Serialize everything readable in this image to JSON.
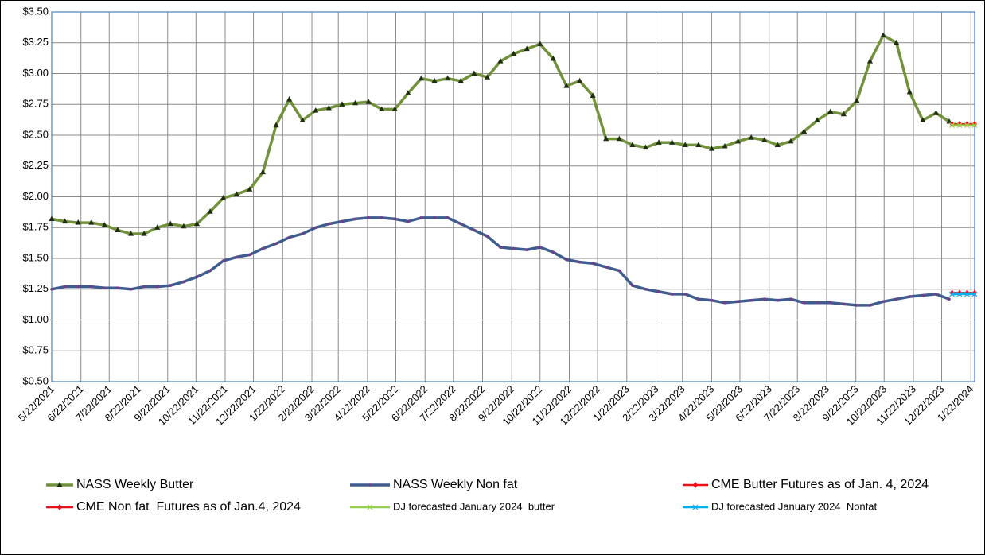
{
  "chart_data": {
    "type": "line",
    "x": [
      "5/22/2021",
      "6/5/2021",
      "6/19/2021",
      "7/3/2021",
      "7/17/2021",
      "7/31/2021",
      "8/14/2021",
      "8/28/2021",
      "9/11/2021",
      "9/25/2021",
      "10/9/2021",
      "10/23/2021",
      "11/6/2021",
      "11/20/2021",
      "12/4/2021",
      "12/18/2021",
      "1/1/2022",
      "1/15/2022",
      "1/29/2022",
      "2/12/2022",
      "2/26/2022",
      "3/12/2022",
      "3/26/2022",
      "4/9/2022",
      "4/23/2022",
      "5/7/2022",
      "5/21/2022",
      "6/4/2022",
      "6/18/2022",
      "7/2/2022",
      "7/16/2022",
      "7/30/2022",
      "8/13/2022",
      "8/27/2022",
      "9/10/2022",
      "9/24/2022",
      "10/8/2022",
      "10/22/2022",
      "11/5/2022",
      "11/19/2022",
      "12/3/2022",
      "12/17/2022",
      "12/31/2022",
      "1/14/2023",
      "1/28/2023",
      "2/11/2023",
      "2/25/2023",
      "3/11/2023",
      "3/25/2023",
      "4/8/2023",
      "4/22/2023",
      "5/6/2023",
      "5/20/2023",
      "6/3/2023",
      "6/17/2023",
      "7/1/2023",
      "7/15/2023",
      "7/29/2023",
      "8/12/2023",
      "8/26/2023",
      "9/9/2023",
      "9/23/2023",
      "10/7/2023",
      "10/21/2023",
      "11/4/2023",
      "11/18/2023",
      "12/2/2023",
      "12/16/2023",
      "12/30/2023"
    ],
    "series": [
      {
        "name": "NASS Weekly Butter",
        "color": "#71913a",
        "marker": "triangle",
        "values": [
          1.82,
          1.8,
          1.79,
          1.79,
          1.77,
          1.73,
          1.7,
          1.7,
          1.75,
          1.78,
          1.76,
          1.78,
          1.88,
          1.99,
          2.02,
          2.06,
          2.2,
          2.58,
          2.79,
          2.62,
          2.7,
          2.72,
          2.75,
          2.76,
          2.77,
          2.71,
          2.71,
          2.84,
          2.96,
          2.94,
          2.96,
          2.94,
          3.0,
          2.97,
          3.1,
          3.16,
          3.2,
          3.24,
          3.12,
          2.9,
          2.94,
          2.82,
          2.47,
          2.47,
          2.42,
          2.4,
          2.44,
          2.44,
          2.42,
          2.42,
          2.39,
          2.41,
          2.45,
          2.48,
          2.46,
          2.42,
          2.45,
          2.53,
          2.62,
          2.69,
          2.67,
          2.78,
          3.1,
          3.31,
          3.25,
          2.85,
          2.62,
          2.68,
          2.61
        ]
      },
      {
        "name": "NASS Weekly Non fat",
        "color": "#3e5d8e",
        "marker": "dot",
        "values": [
          1.25,
          1.27,
          1.27,
          1.27,
          1.26,
          1.26,
          1.25,
          1.27,
          1.27,
          1.28,
          1.31,
          1.35,
          1.4,
          1.48,
          1.51,
          1.53,
          1.58,
          1.62,
          1.67,
          1.7,
          1.75,
          1.78,
          1.8,
          1.82,
          1.83,
          1.83,
          1.82,
          1.8,
          1.83,
          1.83,
          1.83,
          1.78,
          1.73,
          1.68,
          1.59,
          1.58,
          1.57,
          1.59,
          1.55,
          1.49,
          1.47,
          1.46,
          1.43,
          1.4,
          1.28,
          1.25,
          1.23,
          1.21,
          1.21,
          1.17,
          1.16,
          1.14,
          1.15,
          1.16,
          1.17,
          1.16,
          1.17,
          1.14,
          1.14,
          1.14,
          1.13,
          1.12,
          1.12,
          1.15,
          1.17,
          1.19,
          1.2,
          1.21,
          1.17
        ]
      },
      {
        "name": "CME Butter Futures as of Jan. 4, 2024",
        "color": "#e8101a",
        "marker": "diamond",
        "x": [
          "1/2/2024",
          "1/10/2024",
          "1/18/2024",
          "1/26/2024"
        ],
        "values": [
          2.59,
          2.59,
          2.59,
          2.59
        ]
      },
      {
        "name": "CME Non fat  Futures as of Jan.4, 2024",
        "color": "#e8101a",
        "marker": "diamond",
        "x": [
          "1/2/2024",
          "1/10/2024",
          "1/18/2024",
          "1/26/2024"
        ],
        "values": [
          1.22,
          1.22,
          1.22,
          1.22
        ]
      },
      {
        "name": "DJ forecasted January 2024  butter",
        "color": "#92d050",
        "marker": "dash",
        "x": [
          "1/2/2024",
          "1/10/2024",
          "1/18/2024",
          "1/26/2024"
        ],
        "values": [
          2.58,
          2.58,
          2.58,
          2.58
        ]
      },
      {
        "name": "DJ forecasted January 2024  Nonfat",
        "color": "#00b0f0",
        "marker": "dash",
        "x": [
          "1/2/2024",
          "1/10/2024",
          "1/18/2024",
          "1/26/2024"
        ],
        "values": [
          1.21,
          1.21,
          1.21,
          1.21
        ]
      }
    ],
    "xlim": [
      "5/22/2021",
      "1/26/2024"
    ],
    "xticks": [
      "5/22/2021",
      "6/22/2021",
      "7/22/2021",
      "8/22/2021",
      "9/22/2021",
      "10/22/2021",
      "11/22/2021",
      "12/22/2021",
      "1/22/2022",
      "2/22/2022",
      "3/22/2022",
      "4/22/2022",
      "5/22/2022",
      "6/22/2022",
      "7/22/2022",
      "8/22/2022",
      "9/22/2022",
      "10/22/2022",
      "11/22/2022",
      "12/22/2022",
      "1/22/2023",
      "2/22/2023",
      "3/22/2023",
      "4/22/2023",
      "5/22/2023",
      "6/22/2023",
      "7/22/2023",
      "8/22/2023",
      "9/22/2023",
      "10/22/2023",
      "11/22/2023",
      "12/22/2023",
      "1/22/2024"
    ],
    "ylim": [
      0.5,
      3.5
    ],
    "yticks": [
      {
        "value": 0.5,
        "label": "$0.50"
      },
      {
        "value": 0.75,
        "label": "$0.75"
      },
      {
        "value": 1,
        "label": "$1.00"
      },
      {
        "value": 1.25,
        "label": "$1.25"
      },
      {
        "value": 1.5,
        "label": "$1.50"
      },
      {
        "value": 1.75,
        "label": "$1.75"
      },
      {
        "value": 2,
        "label": "$2.00"
      },
      {
        "value": 2.25,
        "label": "$2.25"
      },
      {
        "value": 2.5,
        "label": "$2.50"
      },
      {
        "value": 2.75,
        "label": "$2.75"
      },
      {
        "value": 3,
        "label": "$3.00"
      },
      {
        "value": 3.25,
        "label": "$3.25"
      },
      {
        "value": 3.5,
        "label": "$3.50"
      }
    ],
    "grid": true,
    "legend": "bottom"
  }
}
